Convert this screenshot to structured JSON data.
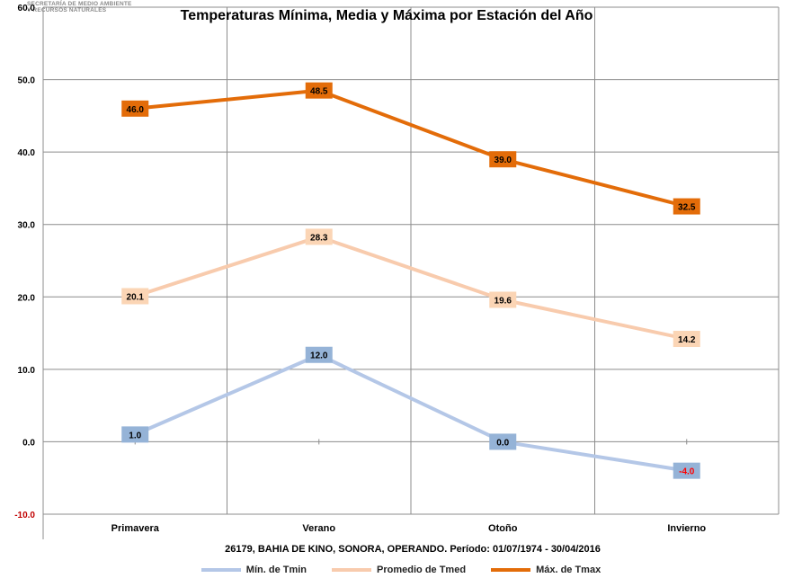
{
  "header": {
    "agency_logo": "SECRETARÍA DE MEDIO AMBIENTE\nY RECURSOS NATURALES",
    "agency_line1": "SECRETARÍA DE MEDIO AMBIENTE",
    "agency_line2": "Y RECURSOS NATURALES"
  },
  "chart_data": {
    "type": "line",
    "title": "Temperaturas Mínima, Media y Máxima por Estación del Año",
    "xlabel": "26179, BAHIA DE KINO, SONORA, OPERANDO. Período: 01/07/1974 - 30/04/2016",
    "ylabel": "",
    "categories": [
      "Primavera",
      "Verano",
      "Otoño",
      "Invierno"
    ],
    "ylim": [
      -10,
      60
    ],
    "yticks": [
      -10,
      0,
      10,
      20,
      30,
      40,
      50,
      60
    ],
    "ytick_labels": [
      "-10.0",
      "0.0",
      "10.0",
      "20.0",
      "30.0",
      "40.0",
      "50.0",
      "60.0"
    ],
    "grid": true,
    "legend_position": "bottom",
    "series": [
      {
        "name": "Mín. de Tmin",
        "values": [
          1.0,
          12.0,
          0.0,
          -4.0
        ],
        "labels": [
          "1.0",
          "12.0",
          "0.0",
          "-4.0"
        ],
        "color": "#b4c7e7",
        "label_bg": "#95b3d7"
      },
      {
        "name": "Promedio de Tmed",
        "values": [
          20.1,
          28.3,
          19.6,
          14.2
        ],
        "labels": [
          "20.1",
          "28.3",
          "19.6",
          "14.2"
        ],
        "color": "#f8cbad",
        "label_bg": "#fbd5b5"
      },
      {
        "name": "Máx. de Tmax",
        "values": [
          46.0,
          48.5,
          39.0,
          32.5
        ],
        "labels": [
          "46.0",
          "48.5",
          "39.0",
          "32.5"
        ],
        "color": "#e36c09",
        "label_bg": "#e36c09"
      }
    ],
    "negative_label_color": "#ff0000",
    "negative_axis_label_color": "#c00000"
  }
}
